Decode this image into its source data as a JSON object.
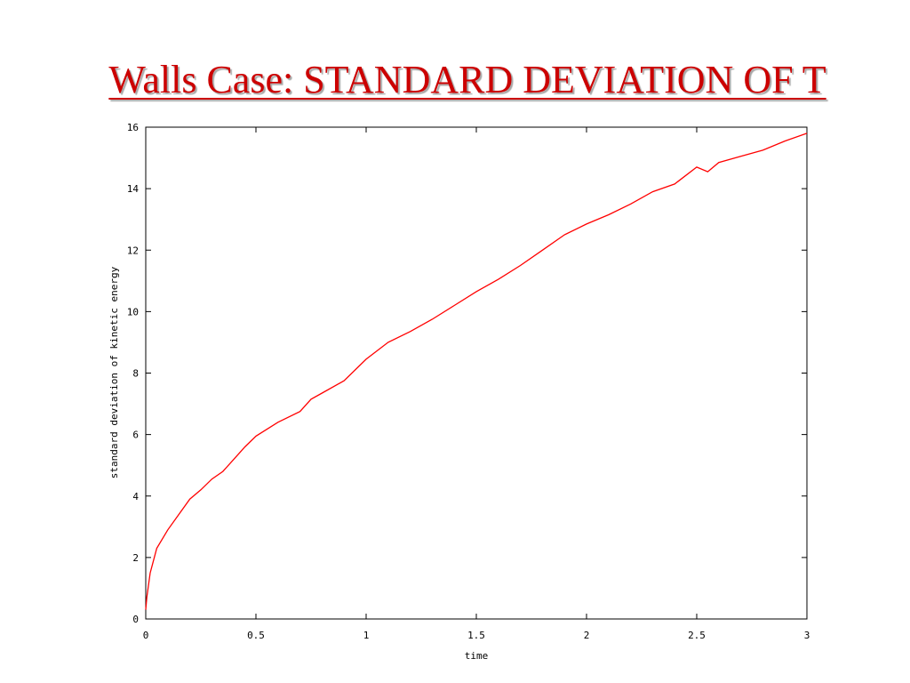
{
  "slide": {
    "title": "Walls Case: STANDARD DEVIATION OF T"
  },
  "colors": {
    "title": "#cc0000",
    "series": "#ff0000",
    "axis": "#000000"
  },
  "chart_data": {
    "type": "line",
    "title": "",
    "xlabel": "time",
    "ylabel": "standard deviation of kinetic energy",
    "xlim": [
      0,
      3
    ],
    "ylim": [
      0,
      16
    ],
    "xticks": [
      0,
      0.5,
      1,
      1.5,
      2,
      2.5,
      3
    ],
    "xtick_labels": [
      "0",
      "0.5",
      "1",
      "1.5",
      "2",
      "2.5",
      "3"
    ],
    "yticks": [
      0,
      2,
      4,
      6,
      8,
      10,
      12,
      14,
      16
    ],
    "ytick_labels": [
      "0",
      "2",
      "4",
      "6",
      "8",
      "10",
      "12",
      "14",
      "16"
    ],
    "grid": false,
    "series": [
      {
        "color": "#ff0000",
        "x": [
          0,
          0.005,
          0.02,
          0.05,
          0.1,
          0.15,
          0.2,
          0.25,
          0.3,
          0.35,
          0.4,
          0.45,
          0.5,
          0.6,
          0.7,
          0.75,
          0.8,
          0.9,
          1.0,
          1.1,
          1.2,
          1.3,
          1.4,
          1.5,
          1.6,
          1.7,
          1.8,
          1.9,
          2.0,
          2.1,
          2.2,
          2.3,
          2.4,
          2.5,
          2.55,
          2.6,
          2.7,
          2.8,
          2.9,
          3.0
        ],
        "y": [
          0.3,
          0.7,
          1.5,
          2.3,
          2.9,
          3.4,
          3.9,
          4.2,
          4.55,
          4.8,
          5.2,
          5.6,
          5.95,
          6.4,
          6.75,
          7.15,
          7.35,
          7.75,
          8.45,
          9.0,
          9.35,
          9.75,
          10.2,
          10.65,
          11.05,
          11.5,
          12.0,
          12.5,
          12.85,
          13.15,
          13.5,
          13.9,
          14.15,
          14.7,
          14.55,
          14.85,
          15.05,
          15.25,
          15.55,
          15.8
        ]
      }
    ]
  }
}
